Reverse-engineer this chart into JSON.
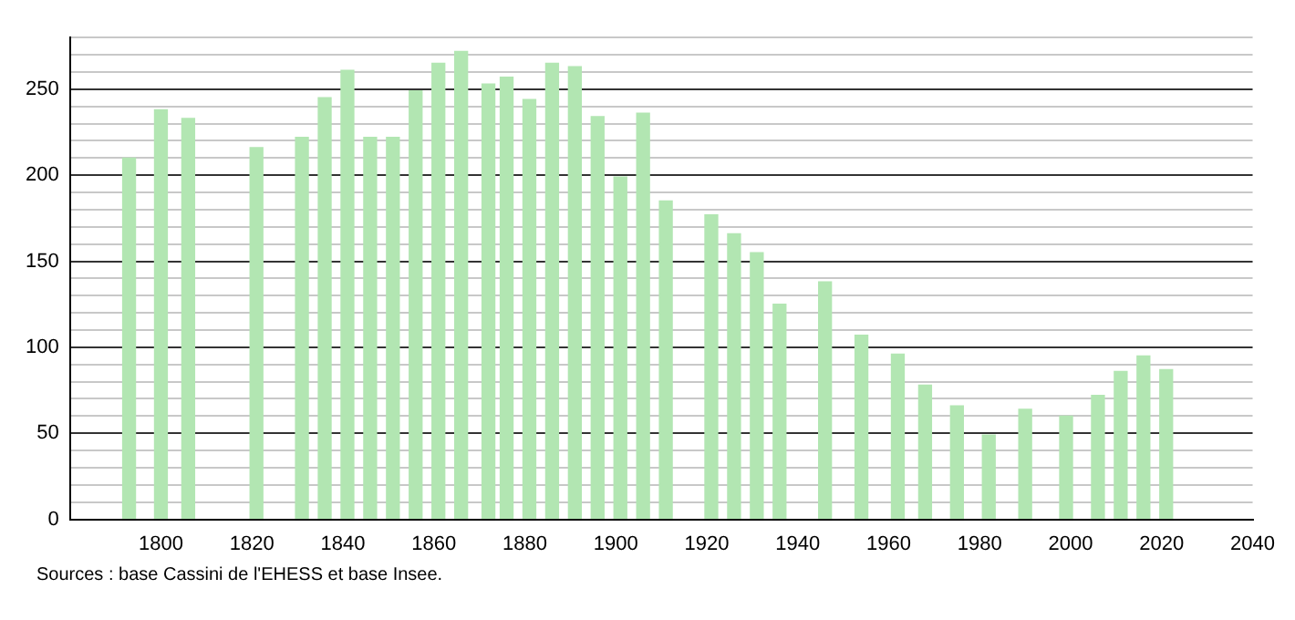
{
  "chart_data": {
    "type": "bar",
    "x": [
      1793,
      1800,
      1806,
      1821,
      1831,
      1836,
      1841,
      1846,
      1851,
      1856,
      1861,
      1866,
      1872,
      1876,
      1881,
      1886,
      1891,
      1896,
      1901,
      1906,
      1911,
      1921,
      1926,
      1931,
      1936,
      1946,
      1954,
      1962,
      1968,
      1975,
      1982,
      1990,
      1999,
      2006,
      2011,
      2016,
      2021
    ],
    "values": [
      210,
      238,
      233,
      216,
      222,
      245,
      261,
      222,
      222,
      249,
      265,
      272,
      253,
      257,
      244,
      265,
      263,
      234,
      199,
      236,
      185,
      177,
      166,
      155,
      125,
      138,
      107,
      96,
      78,
      66,
      49,
      64,
      60,
      72,
      86,
      95,
      87
    ],
    "color": "#b2e6b2",
    "xlim": [
      1780,
      2040
    ],
    "xticks": [
      1800,
      1820,
      1840,
      1860,
      1880,
      1900,
      1920,
      1940,
      1960,
      1980,
      2000,
      2020,
      2040
    ],
    "ylim": [
      0,
      280
    ],
    "yticks": [
      0,
      {
        "value": 10,
        "label": null
      },
      {
        "value": 20,
        "label": null
      },
      {
        "value": 30,
        "label": null
      },
      {
        "value": 40,
        "label": null
      },
      50,
      {
        "value": 60,
        "label": null
      },
      {
        "value": 70,
        "label": null
      },
      {
        "value": 80,
        "label": null
      },
      {
        "value": 90,
        "label": null
      },
      100,
      {
        "value": 110,
        "label": null
      },
      {
        "value": 120,
        "label": null
      },
      {
        "value": 130,
        "label": null
      },
      {
        "value": 140,
        "label": null
      },
      150,
      {
        "value": 160,
        "label": null
      },
      {
        "value": 170,
        "label": null
      },
      {
        "value": 180,
        "label": null
      },
      {
        "value": 190,
        "label": null
      },
      200,
      {
        "value": 210,
        "label": null
      },
      {
        "value": 220,
        "label": null
      },
      {
        "value": 230,
        "label": null
      },
      {
        "value": 240,
        "label": null
      },
      250,
      {
        "value": 260,
        "label": null
      },
      {
        "value": 270,
        "label": null
      },
      {
        "value": 280,
        "label": null
      }
    ],
    "grid": "y",
    "annotations": [
      "Sources : base Cassini de l'EHESS et base Insee."
    ]
  }
}
